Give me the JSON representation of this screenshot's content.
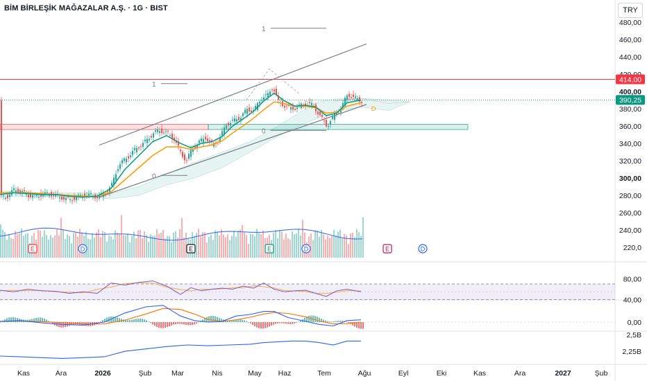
{
  "header": {
    "title": "BİM BİRLEŞİK MAĞAZALAR A.Ş. · 1G · BIST",
    "currency": "TRY"
  },
  "price_axis": {
    "ticks": [
      "480,00",
      "460,00",
      "440,00",
      "420,00",
      "400,00",
      "380,00",
      "360,00",
      "340,00",
      "320,00",
      "300,00",
      "280,00",
      "260,00",
      "240,00",
      "220,0"
    ],
    "badges": {
      "resistance": "414,00",
      "last": "390,25"
    }
  },
  "rsi_axis": {
    "ticks": [
      "80,00",
      "40,00"
    ]
  },
  "macd_axis": {
    "ticks": [
      "0,00"
    ]
  },
  "obv_axis": {
    "ticks": [
      "2,5B",
      "2,25B"
    ]
  },
  "time_axis": {
    "labels": [
      "Kas",
      "Ara",
      "2026",
      "Şub",
      "Mar",
      "Nis",
      "May",
      "Haz",
      "Tem",
      "Ağu",
      "Eyl",
      "Eki",
      "Kas",
      "Ara",
      "2027",
      "Şub"
    ]
  },
  "fib_labels": {
    "one": "1",
    "zero": "0"
  },
  "events": {
    "earnings": "E",
    "dividend": "D"
  },
  "colors": {
    "up": "#26a69a",
    "down": "#ef5350",
    "ema_fast": "#089981",
    "ema_slow": "#ff9800",
    "resistance": "#f23645",
    "last_price": "#089981",
    "rsi": "#7e57c2",
    "obv": "#2962ff"
  },
  "chart_data": {
    "type": "candlestick",
    "title": "BİM BİRLEŞİK MAĞAZALAR A.Ş. · 1G · BIST",
    "y_range": [
      220,
      480
    ],
    "last_price": 390.25,
    "resistance": 414,
    "support_zone": [
      356,
      362
    ],
    "x_labels": [
      "Kas",
      "Ara",
      "2026",
      "Şub",
      "Mar",
      "Nis",
      "May",
      "Haz",
      "Tem",
      "Ağu",
      "Eyl",
      "Eki",
      "Kas",
      "Ara",
      "2027",
      "Şub"
    ],
    "close_path": [
      [
        0,
        278
      ],
      [
        10,
        279
      ],
      [
        20,
        287
      ],
      [
        30,
        284
      ],
      [
        40,
        280
      ],
      [
        50,
        279
      ],
      [
        60,
        281
      ],
      [
        70,
        282
      ],
      [
        80,
        279
      ],
      [
        90,
        277
      ],
      [
        100,
        275
      ],
      [
        110,
        278
      ],
      [
        120,
        280
      ],
      [
        130,
        280
      ],
      [
        140,
        278
      ],
      [
        150,
        282
      ],
      [
        160,
        292
      ],
      [
        170,
        315
      ],
      [
        180,
        322
      ],
      [
        190,
        330
      ],
      [
        200,
        337
      ],
      [
        210,
        343
      ],
      [
        220,
        352
      ],
      [
        230,
        355
      ],
      [
        240,
        352
      ],
      [
        250,
        345
      ],
      [
        260,
        328
      ],
      [
        268,
        320
      ],
      [
        275,
        333
      ],
      [
        285,
        341
      ],
      [
        295,
        347
      ],
      [
        305,
        338
      ],
      [
        315,
        345
      ],
      [
        325,
        362
      ],
      [
        335,
        366
      ],
      [
        345,
        370
      ],
      [
        355,
        379
      ],
      [
        365,
        378
      ],
      [
        375,
        392
      ],
      [
        385,
        396
      ],
      [
        392,
        406
      ],
      [
        400,
        388
      ],
      [
        410,
        383
      ],
      [
        420,
        380
      ],
      [
        430,
        383
      ],
      [
        440,
        386
      ],
      [
        450,
        384
      ],
      [
        460,
        372
      ],
      [
        470,
        360
      ],
      [
        480,
        372
      ],
      [
        490,
        380
      ],
      [
        500,
        397
      ],
      [
        510,
        392
      ],
      [
        520,
        389
      ]
    ],
    "ema_fast": [
      [
        0,
        281
      ],
      [
        20,
        283
      ],
      [
        40,
        282
      ],
      [
        60,
        281
      ],
      [
        80,
        281
      ],
      [
        100,
        279
      ],
      [
        120,
        278
      ],
      [
        140,
        279
      ],
      [
        160,
        288
      ],
      [
        180,
        310
      ],
      [
        200,
        326
      ],
      [
        220,
        342
      ],
      [
        240,
        349
      ],
      [
        260,
        340
      ],
      [
        275,
        335
      ],
      [
        290,
        340
      ],
      [
        305,
        342
      ],
      [
        320,
        348
      ],
      [
        335,
        360
      ],
      [
        350,
        368
      ],
      [
        365,
        377
      ],
      [
        380,
        389
      ],
      [
        395,
        398
      ],
      [
        410,
        389
      ],
      [
        425,
        383
      ],
      [
        440,
        384
      ],
      [
        455,
        382
      ],
      [
        470,
        372
      ],
      [
        485,
        375
      ],
      [
        500,
        387
      ],
      [
        520,
        390
      ]
    ],
    "ema_slow": [
      [
        0,
        283
      ],
      [
        20,
        283
      ],
      [
        40,
        283
      ],
      [
        60,
        282
      ],
      [
        80,
        281
      ],
      [
        100,
        280
      ],
      [
        120,
        279
      ],
      [
        140,
        279
      ],
      [
        160,
        284
      ],
      [
        180,
        298
      ],
      [
        200,
        312
      ],
      [
        220,
        326
      ],
      [
        240,
        336
      ],
      [
        260,
        336
      ],
      [
        275,
        333
      ],
      [
        290,
        336
      ],
      [
        305,
        338
      ],
      [
        320,
        343
      ],
      [
        335,
        352
      ],
      [
        350,
        360
      ],
      [
        365,
        369
      ],
      [
        380,
        379
      ],
      [
        395,
        388
      ],
      [
        410,
        386
      ],
      [
        425,
        383
      ],
      [
        440,
        383
      ],
      [
        455,
        381
      ],
      [
        470,
        375
      ],
      [
        485,
        376
      ],
      [
        500,
        383
      ],
      [
        520,
        387
      ]
    ],
    "rsi_range": [
      30,
      90
    ],
    "rsi_band": [
      40,
      70
    ],
    "rsi": [
      [
        0,
        58
      ],
      [
        20,
        55
      ],
      [
        40,
        60
      ],
      [
        60,
        57
      ],
      [
        80,
        56
      ],
      [
        100,
        52
      ],
      [
        120,
        55
      ],
      [
        140,
        52
      ],
      [
        160,
        72
      ],
      [
        180,
        68
      ],
      [
        200,
        73
      ],
      [
        220,
        76
      ],
      [
        240,
        66
      ],
      [
        260,
        50
      ],
      [
        275,
        63
      ],
      [
        290,
        57
      ],
      [
        305,
        60
      ],
      [
        320,
        62
      ],
      [
        335,
        60
      ],
      [
        350,
        66
      ],
      [
        365,
        62
      ],
      [
        380,
        72
      ],
      [
        395,
        60
      ],
      [
        410,
        55
      ],
      [
        425,
        57
      ],
      [
        440,
        58
      ],
      [
        455,
        52
      ],
      [
        470,
        46
      ],
      [
        485,
        57
      ],
      [
        500,
        60
      ],
      [
        520,
        55
      ]
    ],
    "macd_range": [
      -12,
      14
    ],
    "macd": [
      [
        0,
        0.5
      ],
      [
        30,
        1
      ],
      [
        60,
        -0.5
      ],
      [
        90,
        -1.5
      ],
      [
        120,
        -2
      ],
      [
        150,
        0
      ],
      [
        180,
        6
      ],
      [
        210,
        10
      ],
      [
        235,
        11
      ],
      [
        260,
        4
      ],
      [
        280,
        1
      ],
      [
        300,
        0
      ],
      [
        320,
        0.5
      ],
      [
        340,
        4
      ],
      [
        360,
        5
      ],
      [
        380,
        7
      ],
      [
        395,
        7
      ],
      [
        415,
        3
      ],
      [
        440,
        0.5
      ],
      [
        460,
        -1.5
      ],
      [
        480,
        -2.5
      ],
      [
        500,
        1
      ],
      [
        520,
        1.5
      ]
    ],
    "obv_range": [
      2.2,
      2.55
    ],
    "obv": [
      [
        0,
        2.27
      ],
      [
        30,
        2.26
      ],
      [
        60,
        2.25
      ],
      [
        90,
        2.24
      ],
      [
        120,
        2.25
      ],
      [
        150,
        2.26
      ],
      [
        180,
        2.33
      ],
      [
        210,
        2.36
      ],
      [
        240,
        2.39
      ],
      [
        270,
        2.41
      ],
      [
        300,
        2.4
      ],
      [
        330,
        2.41
      ],
      [
        360,
        2.42
      ],
      [
        380,
        2.44
      ],
      [
        400,
        2.45
      ],
      [
        420,
        2.46
      ],
      [
        440,
        2.46
      ],
      [
        460,
        2.44
      ],
      [
        480,
        2.41
      ],
      [
        500,
        2.46
      ],
      [
        520,
        2.46
      ]
    ]
  }
}
